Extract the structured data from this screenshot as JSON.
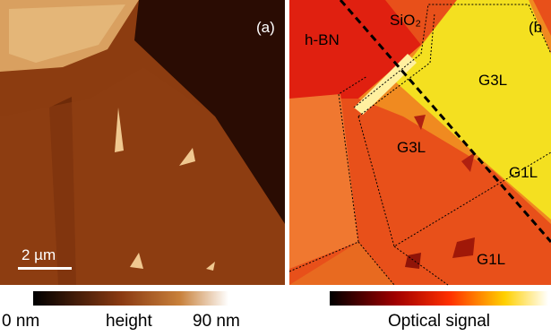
{
  "panel_a": {
    "label": "(a)",
    "scale_bar": "2 µm"
  },
  "panel_b": {
    "label": "(b",
    "regions": [
      "h-BN",
      "SiO₂",
      "G3L",
      "G3L",
      "G1L",
      "G1L"
    ]
  },
  "colorbar_a": {
    "min_label": "0 nm",
    "title": "height",
    "max_label": "90 nm"
  },
  "colorbar_b": {
    "title": "Optical signal"
  }
}
